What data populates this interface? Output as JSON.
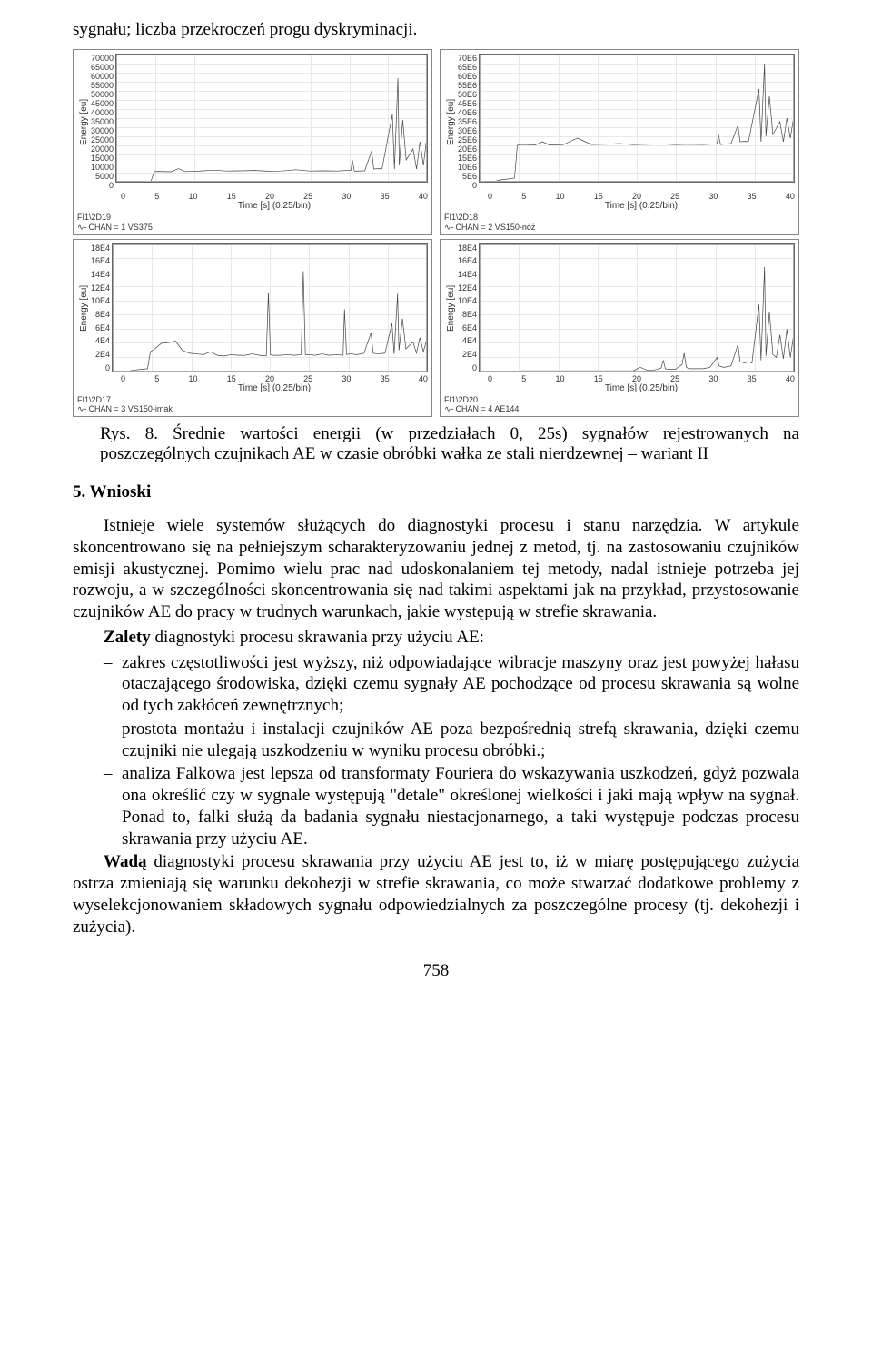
{
  "top_line": "sygnału; liczba przekroczeń progu dyskryminacji.",
  "caption": "Rys. 8. Średnie wartości energii (w przedziałach 0, 25s) sygnałów rejestrowanych na poszczególnych czujnikach AE w czasie obróbki wałka ze stali nierdzewnej – wariant II",
  "section_heading": "5. Wnioski",
  "para1": "Istnieje wiele systemów służących do diagnostyki procesu i stanu narzędzia. W artykule skoncentrowano się na    pełniejszym scharakteryzowaniu jednej z metod, tj. na zastosowaniu czujników emisji akustycznej. Pomimo wielu prac nad udoskonalaniem tej metody, nadal istnieje potrzeba jej rozwoju, a w szczególności skoncentrowania się nad takimi aspektami jak na przykład, przystosowanie czujników AE do pracy w trudnych warunkach, jakie występują w strefie skrawania.",
  "zalety_label": "Zalety",
  "zalety_rest": " diagnostyki procesu skrawania przy użyciu AE:",
  "bullets": [
    "zakres częstotliwości jest wyższy, niż odpowiadające wibracje maszyny oraz jest powyżej hałasu otaczającego środowiska, dzięki czemu sygnały AE pochodzące od procesu skrawania są wolne od tych zakłóceń zewnętrznych;",
    "prostota montażu i instalacji czujników AE poza bezpośrednią strefą skrawania, dzięki czemu czujniki nie ulegają uszkodzeniu w wyniku procesu obróbki.;",
    "analiza Falkowa jest lepsza od transformaty Fouriera do wskazywania uszkodzeń, gdyż pozwala ona określić czy w sygnale występują \"detale\" określonej wielkości i jaki mają wpływ na sygnał. Ponad to, falki służą da badania sygnału niestacjonarnego, a taki występuje podczas procesu skrawania przy użyciu AE."
  ],
  "wada_label": "Wadą",
  "wada_rest": " diagnostyki procesu skrawania przy użyciu AE jest to, iż w miarę postępującego zużycia ostrza zmieniają się warunku dekohezji w strefie skrawania, co może stwarzać dodatkowe problemy z wyselekcjonowaniem składowych sygnału odpowiedzialnych za poszczególne procesy (tj. dekohezji i zużycia).",
  "page_number": "758",
  "chart_common": {
    "xlabel": "Time [s] (0,25/bin)",
    "ylabel": "Energy [eu]",
    "xticks": [
      "0",
      "5",
      "10",
      "15",
      "20",
      "25",
      "30",
      "35",
      "40"
    ],
    "grid_color": "#e8e8e8",
    "border_color": "#666666",
    "line_color": "#444444",
    "line_width": 1,
    "background": "#ffffff",
    "text_color": "#333333",
    "label_fontsize": 10,
    "tick_fontsize": 9
  },
  "charts": [
    {
      "type": "line",
      "footer_id": "FI1\\2D19",
      "chan": "CHAN = 1 VS375",
      "yticks": [
        "70000",
        "65000",
        "60000",
        "55000",
        "50000",
        "45000",
        "40000",
        "35000",
        "30000",
        "25000",
        "20000",
        "15000",
        "10000",
        "5000",
        "0"
      ],
      "ylim": [
        0,
        70000
      ],
      "xlim": [
        0,
        45
      ],
      "points": [
        [
          0,
          0
        ],
        [
          2,
          0
        ],
        [
          2.3,
          300
        ],
        [
          3,
          0
        ],
        [
          5,
          100
        ],
        [
          5.5,
          5500
        ],
        [
          6,
          5700
        ],
        [
          8,
          5500
        ],
        [
          9,
          7200
        ],
        [
          10,
          5600
        ],
        [
          12,
          5800
        ],
        [
          14,
          6400
        ],
        [
          16,
          5900
        ],
        [
          18,
          6000
        ],
        [
          20,
          6200
        ],
        [
          22,
          5800
        ],
        [
          24,
          5900
        ],
        [
          26,
          6600
        ],
        [
          28,
          5900
        ],
        [
          30,
          6000
        ],
        [
          32,
          5900
        ],
        [
          34,
          6300
        ],
        [
          34.2,
          12000
        ],
        [
          34.5,
          5800
        ],
        [
          36,
          6000
        ],
        [
          37,
          17000
        ],
        [
          37.3,
          7000
        ],
        [
          38,
          7200
        ],
        [
          38.5,
          7100
        ],
        [
          40,
          37000
        ],
        [
          40.3,
          6900
        ],
        [
          40.8,
          57000
        ],
        [
          41,
          9000
        ],
        [
          41.5,
          34000
        ],
        [
          42,
          12000
        ],
        [
          43,
          18000
        ],
        [
          43.5,
          7000
        ],
        [
          44,
          22000
        ],
        [
          44.5,
          9000
        ],
        [
          45,
          25000
        ]
      ]
    },
    {
      "type": "line",
      "footer_id": "FI1\\2D18",
      "chan": "CHAN = 2 VS150-nóż",
      "yticks": [
        "70E6",
        "65E6",
        "60E6",
        "55E6",
        "50E6",
        "45E6",
        "40E6",
        "35E6",
        "30E6",
        "25E6",
        "20E6",
        "15E6",
        "10E6",
        "5E6",
        "0"
      ],
      "ylim": [
        0,
        70
      ],
      "xlim": [
        0,
        45
      ],
      "points": [
        [
          0,
          0
        ],
        [
          2,
          0
        ],
        [
          3,
          1
        ],
        [
          5,
          2
        ],
        [
          5.4,
          20
        ],
        [
          6,
          20.5
        ],
        [
          8,
          20.3
        ],
        [
          9,
          22
        ],
        [
          10,
          20.2
        ],
        [
          12,
          20.4
        ],
        [
          14,
          24
        ],
        [
          16,
          20.5
        ],
        [
          18,
          20.6
        ],
        [
          20,
          21
        ],
        [
          22,
          20.4
        ],
        [
          24,
          20.6
        ],
        [
          26,
          20.8
        ],
        [
          28,
          20.4
        ],
        [
          30,
          20.6
        ],
        [
          32,
          20.5
        ],
        [
          34,
          20.8
        ],
        [
          34.2,
          26
        ],
        [
          34.5,
          20.5
        ],
        [
          36,
          21
        ],
        [
          37,
          31
        ],
        [
          37.3,
          22
        ],
        [
          38,
          22.2
        ],
        [
          38.5,
          22.1
        ],
        [
          40,
          51
        ],
        [
          40.3,
          22
        ],
        [
          40.8,
          65
        ],
        [
          41,
          25
        ],
        [
          41.5,
          47
        ],
        [
          42,
          26
        ],
        [
          43,
          33
        ],
        [
          43.5,
          22
        ],
        [
          44,
          35
        ],
        [
          44.5,
          24
        ],
        [
          45,
          36
        ]
      ]
    },
    {
      "type": "line",
      "footer_id": "FI1\\2D17",
      "chan": "CHAN = 3 VS150-imak",
      "yticks": [
        "18E4",
        "16E4",
        "14E4",
        "12E4",
        "10E4",
        "8E4",
        "6E4",
        "4E4",
        "2E4",
        "0"
      ],
      "ylim": [
        0,
        18
      ],
      "xlim": [
        0,
        45
      ],
      "points": [
        [
          0,
          0
        ],
        [
          2,
          0
        ],
        [
          3,
          0.2
        ],
        [
          5,
          0.4
        ],
        [
          5.4,
          2.8
        ],
        [
          6,
          3.2
        ],
        [
          7,
          4.0
        ],
        [
          8,
          4.1
        ],
        [
          9,
          4.3
        ],
        [
          10,
          3.0
        ],
        [
          11,
          2.6
        ],
        [
          12,
          2.5
        ],
        [
          13,
          2.4
        ],
        [
          14,
          2.8
        ],
        [
          15,
          2.3
        ],
        [
          16,
          2.2
        ],
        [
          17,
          2.4
        ],
        [
          18,
          2.3
        ],
        [
          19,
          2.3
        ],
        [
          20,
          2.5
        ],
        [
          21,
          2.3
        ],
        [
          22,
          2.2
        ],
        [
          22.3,
          11.2
        ],
        [
          22.6,
          2.4
        ],
        [
          23,
          2.3
        ],
        [
          24,
          2.3
        ],
        [
          25,
          2.4
        ],
        [
          26,
          2.3
        ],
        [
          27,
          2.4
        ],
        [
          27.3,
          14.2
        ],
        [
          27.6,
          2.4
        ],
        [
          28,
          2.4
        ],
        [
          29,
          2.3
        ],
        [
          30,
          2.5
        ],
        [
          31,
          2.3
        ],
        [
          32,
          2.4
        ],
        [
          33,
          2.3
        ],
        [
          33.2,
          8.8
        ],
        [
          33.5,
          2.4
        ],
        [
          34,
          2.5
        ],
        [
          35,
          2.4
        ],
        [
          36,
          2.6
        ],
        [
          37,
          5.5
        ],
        [
          37.3,
          2.6
        ],
        [
          38,
          2.5
        ],
        [
          39,
          2.6
        ],
        [
          40,
          6.8
        ],
        [
          40.3,
          2.5
        ],
        [
          40.8,
          11.0
        ],
        [
          41,
          3.0
        ],
        [
          41.5,
          7.5
        ],
        [
          42,
          3.2
        ],
        [
          43,
          4.2
        ],
        [
          43.5,
          2.6
        ],
        [
          44,
          4.8
        ],
        [
          44.5,
          2.8
        ],
        [
          45,
          4.6
        ]
      ]
    },
    {
      "type": "line",
      "footer_id": "FI1\\2D20",
      "chan": "CHAN = 4 AE144",
      "yticks": [
        "18E4",
        "16E4",
        "14E4",
        "12E4",
        "10E4",
        "8E4",
        "6E4",
        "4E4",
        "2E4",
        "0"
      ],
      "ylim": [
        0,
        18
      ],
      "xlim": [
        0,
        45
      ],
      "points": [
        [
          0,
          0
        ],
        [
          2,
          0
        ],
        [
          5,
          0
        ],
        [
          6,
          0.1
        ],
        [
          8,
          0.1
        ],
        [
          10,
          0.1
        ],
        [
          12,
          0.1
        ],
        [
          14,
          0.1
        ],
        [
          16,
          0.1
        ],
        [
          18,
          0.1
        ],
        [
          20,
          0.1
        ],
        [
          22,
          0.1
        ],
        [
          23,
          0.6
        ],
        [
          24,
          0.2
        ],
        [
          25,
          0.2
        ],
        [
          26,
          0.5
        ],
        [
          26.3,
          1.6
        ],
        [
          26.6,
          0.4
        ],
        [
          27,
          0.3
        ],
        [
          28,
          0.3
        ],
        [
          29,
          1.0
        ],
        [
          29.3,
          2.6
        ],
        [
          29.6,
          0.6
        ],
        [
          30,
          0.4
        ],
        [
          31,
          0.4
        ],
        [
          32,
          0.4
        ],
        [
          33,
          0.6
        ],
        [
          34,
          2.0
        ],
        [
          34.3,
          0.8
        ],
        [
          35,
          0.6
        ],
        [
          36,
          0.8
        ],
        [
          37,
          3.8
        ],
        [
          37.3,
          1.4
        ],
        [
          38,
          1.2
        ],
        [
          38.5,
          1.4
        ],
        [
          39,
          1.2
        ],
        [
          40,
          9.5
        ],
        [
          40.3,
          1.6
        ],
        [
          40.8,
          14.8
        ],
        [
          41,
          2.2
        ],
        [
          41.5,
          8.5
        ],
        [
          42,
          2.4
        ],
        [
          42.5,
          2.0
        ],
        [
          43,
          5.2
        ],
        [
          43.5,
          1.8
        ],
        [
          44,
          6.0
        ],
        [
          44.5,
          2.0
        ],
        [
          45,
          5.4
        ]
      ]
    }
  ]
}
